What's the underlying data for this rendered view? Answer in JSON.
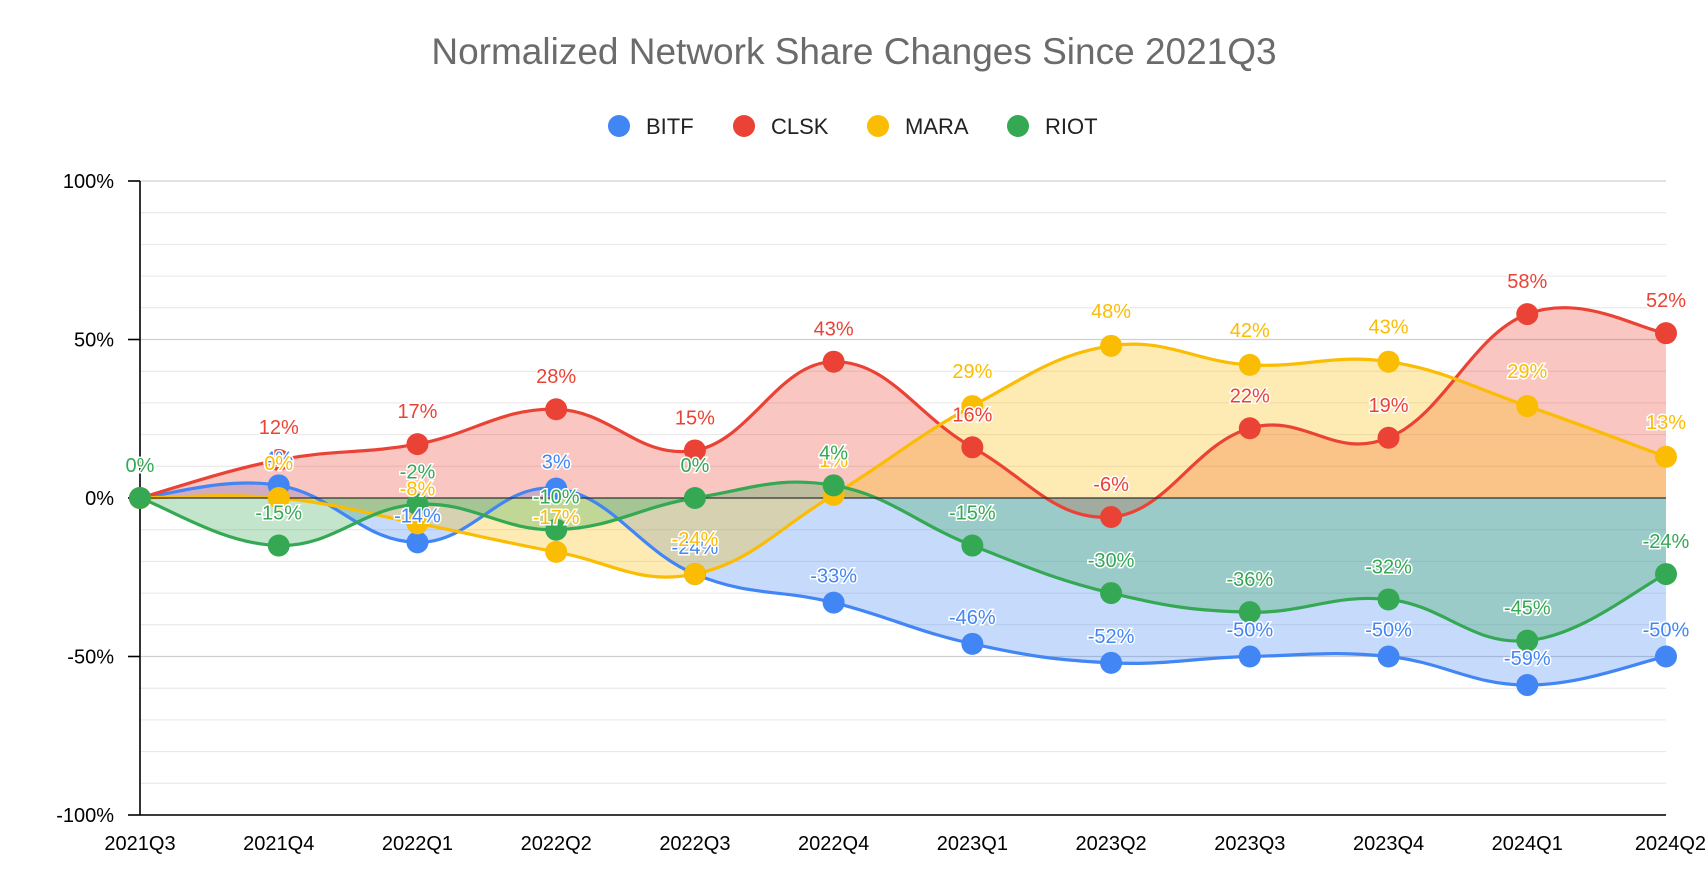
{
  "chart_data": {
    "type": "area",
    "title": "Normalized Network Share Changes Since 2021Q3",
    "xlabel": "",
    "ylabel": "",
    "ylim": [
      -1,
      1
    ],
    "y_ticks": [
      -1,
      -0.5,
      0,
      0.5,
      1
    ],
    "y_tick_labels": [
      "-100%",
      "-50%",
      "0%",
      "50%",
      "100%"
    ],
    "legend_position": "top-center",
    "categories": [
      "2021Q3",
      "2021Q4",
      "2022Q1",
      "2022Q2",
      "2022Q3",
      "2022Q4",
      "2023Q1",
      "2023Q2",
      "2023Q3",
      "2023Q4",
      "2024Q1",
      "2024Q2"
    ],
    "series": [
      {
        "name": "BITF",
        "color": "#4285f4",
        "fill": "rgba(66,133,244,0.30)",
        "values": [
          0,
          0.04,
          -0.14,
          0.03,
          -0.24,
          -0.33,
          -0.46,
          -0.52,
          -0.5,
          -0.5,
          -0.59,
          -0.5
        ],
        "labels": [
          "",
          "4%",
          "-14%",
          "3%",
          "-24%",
          "-33%",
          "-46%",
          "-52%",
          "-50%",
          "-50%",
          "-59%",
          "-50%"
        ]
      },
      {
        "name": "CLSK",
        "color": "#ea4335",
        "fill": "rgba(234,67,53,0.30)",
        "values": [
          0,
          0.12,
          0.17,
          0.28,
          0.15,
          0.43,
          0.16,
          -0.06,
          0.22,
          0.19,
          0.58,
          0.52
        ],
        "labels": [
          "",
          "12%",
          "17%",
          "28%",
          "15%",
          "43%",
          "16%",
          "-6%",
          "22%",
          "19%",
          "58%",
          "52%"
        ]
      },
      {
        "name": "MARA",
        "color": "#fbbc04",
        "fill": "rgba(251,188,4,0.30)",
        "values": [
          0,
          0.0,
          -0.08,
          -0.17,
          -0.24,
          0.01,
          0.29,
          0.48,
          0.42,
          0.43,
          0.29,
          0.13
        ],
        "labels": [
          "",
          "0%",
          "-8%",
          "-17%",
          "-24%",
          "1%",
          "29%",
          "48%",
          "42%",
          "43%",
          "29%",
          "13%"
        ]
      },
      {
        "name": "RIOT",
        "color": "#34a853",
        "fill": "rgba(52,168,83,0.30)",
        "values": [
          0,
          -0.15,
          -0.02,
          -0.1,
          0.0,
          0.04,
          -0.15,
          -0.3,
          -0.36,
          -0.32,
          -0.45,
          -0.24
        ],
        "labels": [
          "0%",
          "-15%",
          "-2%",
          "-10%",
          "0%",
          "4%",
          "-15%",
          "-30%",
          "-36%",
          "-32%",
          "-45%",
          "-24%"
        ]
      }
    ]
  }
}
